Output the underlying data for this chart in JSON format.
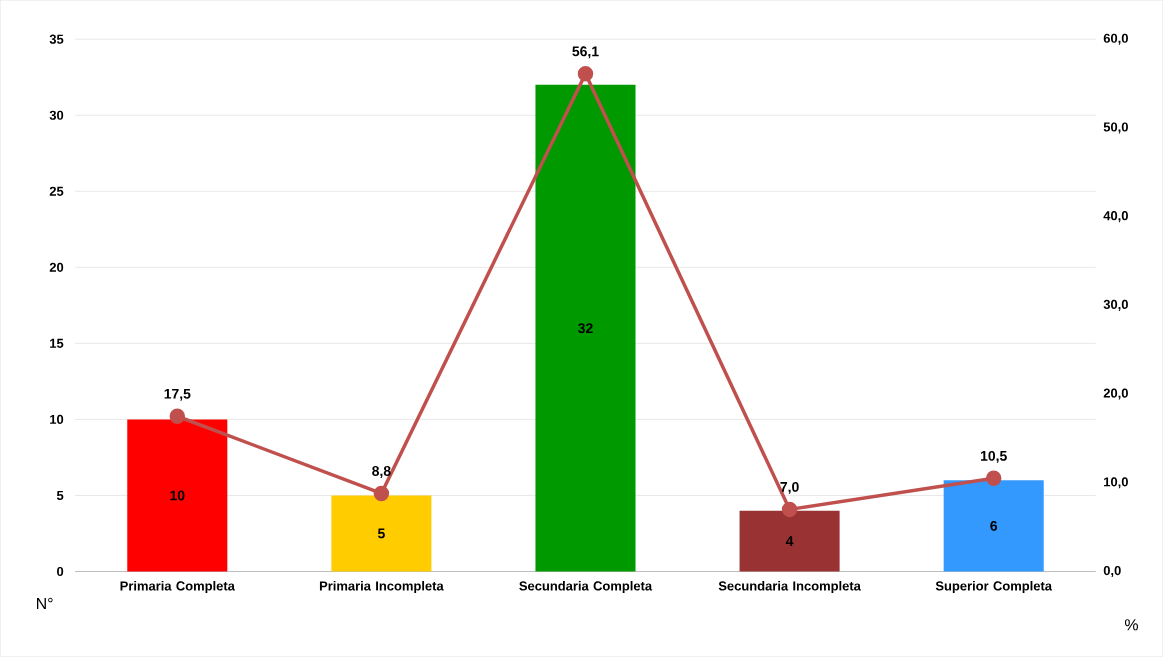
{
  "chart_data": {
    "type": "bar",
    "categories": [
      "Primaria Completa",
      "Primaria Incompleta",
      "Secundaria Completa",
      "Secundaria Incompleta",
      "Superior Completa"
    ],
    "series": [
      {
        "colors": [
          "#ff0000",
          "#ffcc00",
          "#009900",
          "#993333",
          "#3399ff"
        ],
        "values": [
          10,
          5,
          32,
          4,
          6
        ],
        "value_labels": [
          "10",
          "5",
          "32",
          "4",
          "6"
        ]
      },
      {
        "type": "line",
        "axis": "y2",
        "color": "#c0504d",
        "values": [
          17.5,
          8.8,
          56.1,
          7.0,
          10.5
        ],
        "value_labels": [
          "17,5",
          "8,8",
          "56,1",
          "7,0",
          "10,5"
        ]
      }
    ],
    "ylabel": "N°",
    "y2label": "%",
    "ylim": [
      0,
      35
    ],
    "yticks": [
      0,
      5,
      10,
      15,
      20,
      25,
      30,
      35
    ],
    "y2lim": [
      0,
      60
    ],
    "y2ticks": [
      {
        "value": 0,
        "label": "0,0"
      },
      {
        "value": 10,
        "label": "10,0"
      },
      {
        "value": 20,
        "label": "20,0"
      },
      {
        "value": 30,
        "label": "30,0"
      },
      {
        "value": 40,
        "label": "40,0"
      },
      {
        "value": 50,
        "label": "50,0"
      },
      {
        "value": 60,
        "label": "60,0"
      }
    ],
    "grid": "y",
    "marker": "circle"
  }
}
